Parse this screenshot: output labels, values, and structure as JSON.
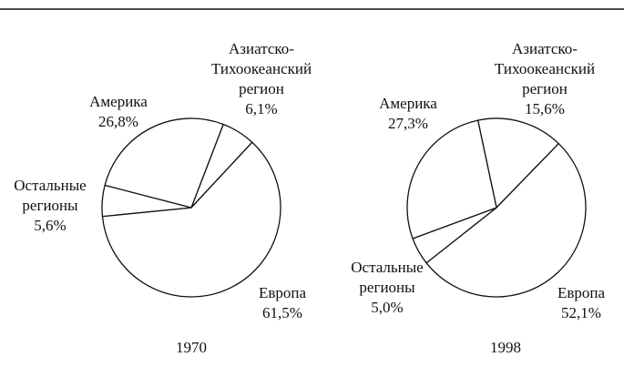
{
  "chart_data": [
    {
      "type": "pie",
      "title": "1970",
      "categories": [
        [
          "Азиатско-",
          "Тихоокеанский",
          "регион"
        ],
        [
          "Европа"
        ],
        [
          "Остальные",
          "регионы"
        ],
        [
          "Америка"
        ]
      ],
      "values": [
        6.1,
        61.5,
        5.6,
        26.8
      ],
      "value_labels": [
        "6,1%",
        "61,5%",
        "5,6%",
        "26,8%"
      ],
      "color": "#ffffff"
    },
    {
      "type": "pie",
      "title": "1998",
      "categories": [
        [
          "Азиатско-",
          "Тихоокеанский",
          "регион"
        ],
        [
          "Европа"
        ],
        [
          "Остальные",
          "регионы"
        ],
        [
          "Америка"
        ]
      ],
      "values": [
        15.6,
        52.1,
        5.0,
        27.3
      ],
      "value_labels": [
        "15,6%",
        "52,1%",
        "5,0%",
        "27,3%"
      ],
      "color": "#ffffff"
    }
  ]
}
